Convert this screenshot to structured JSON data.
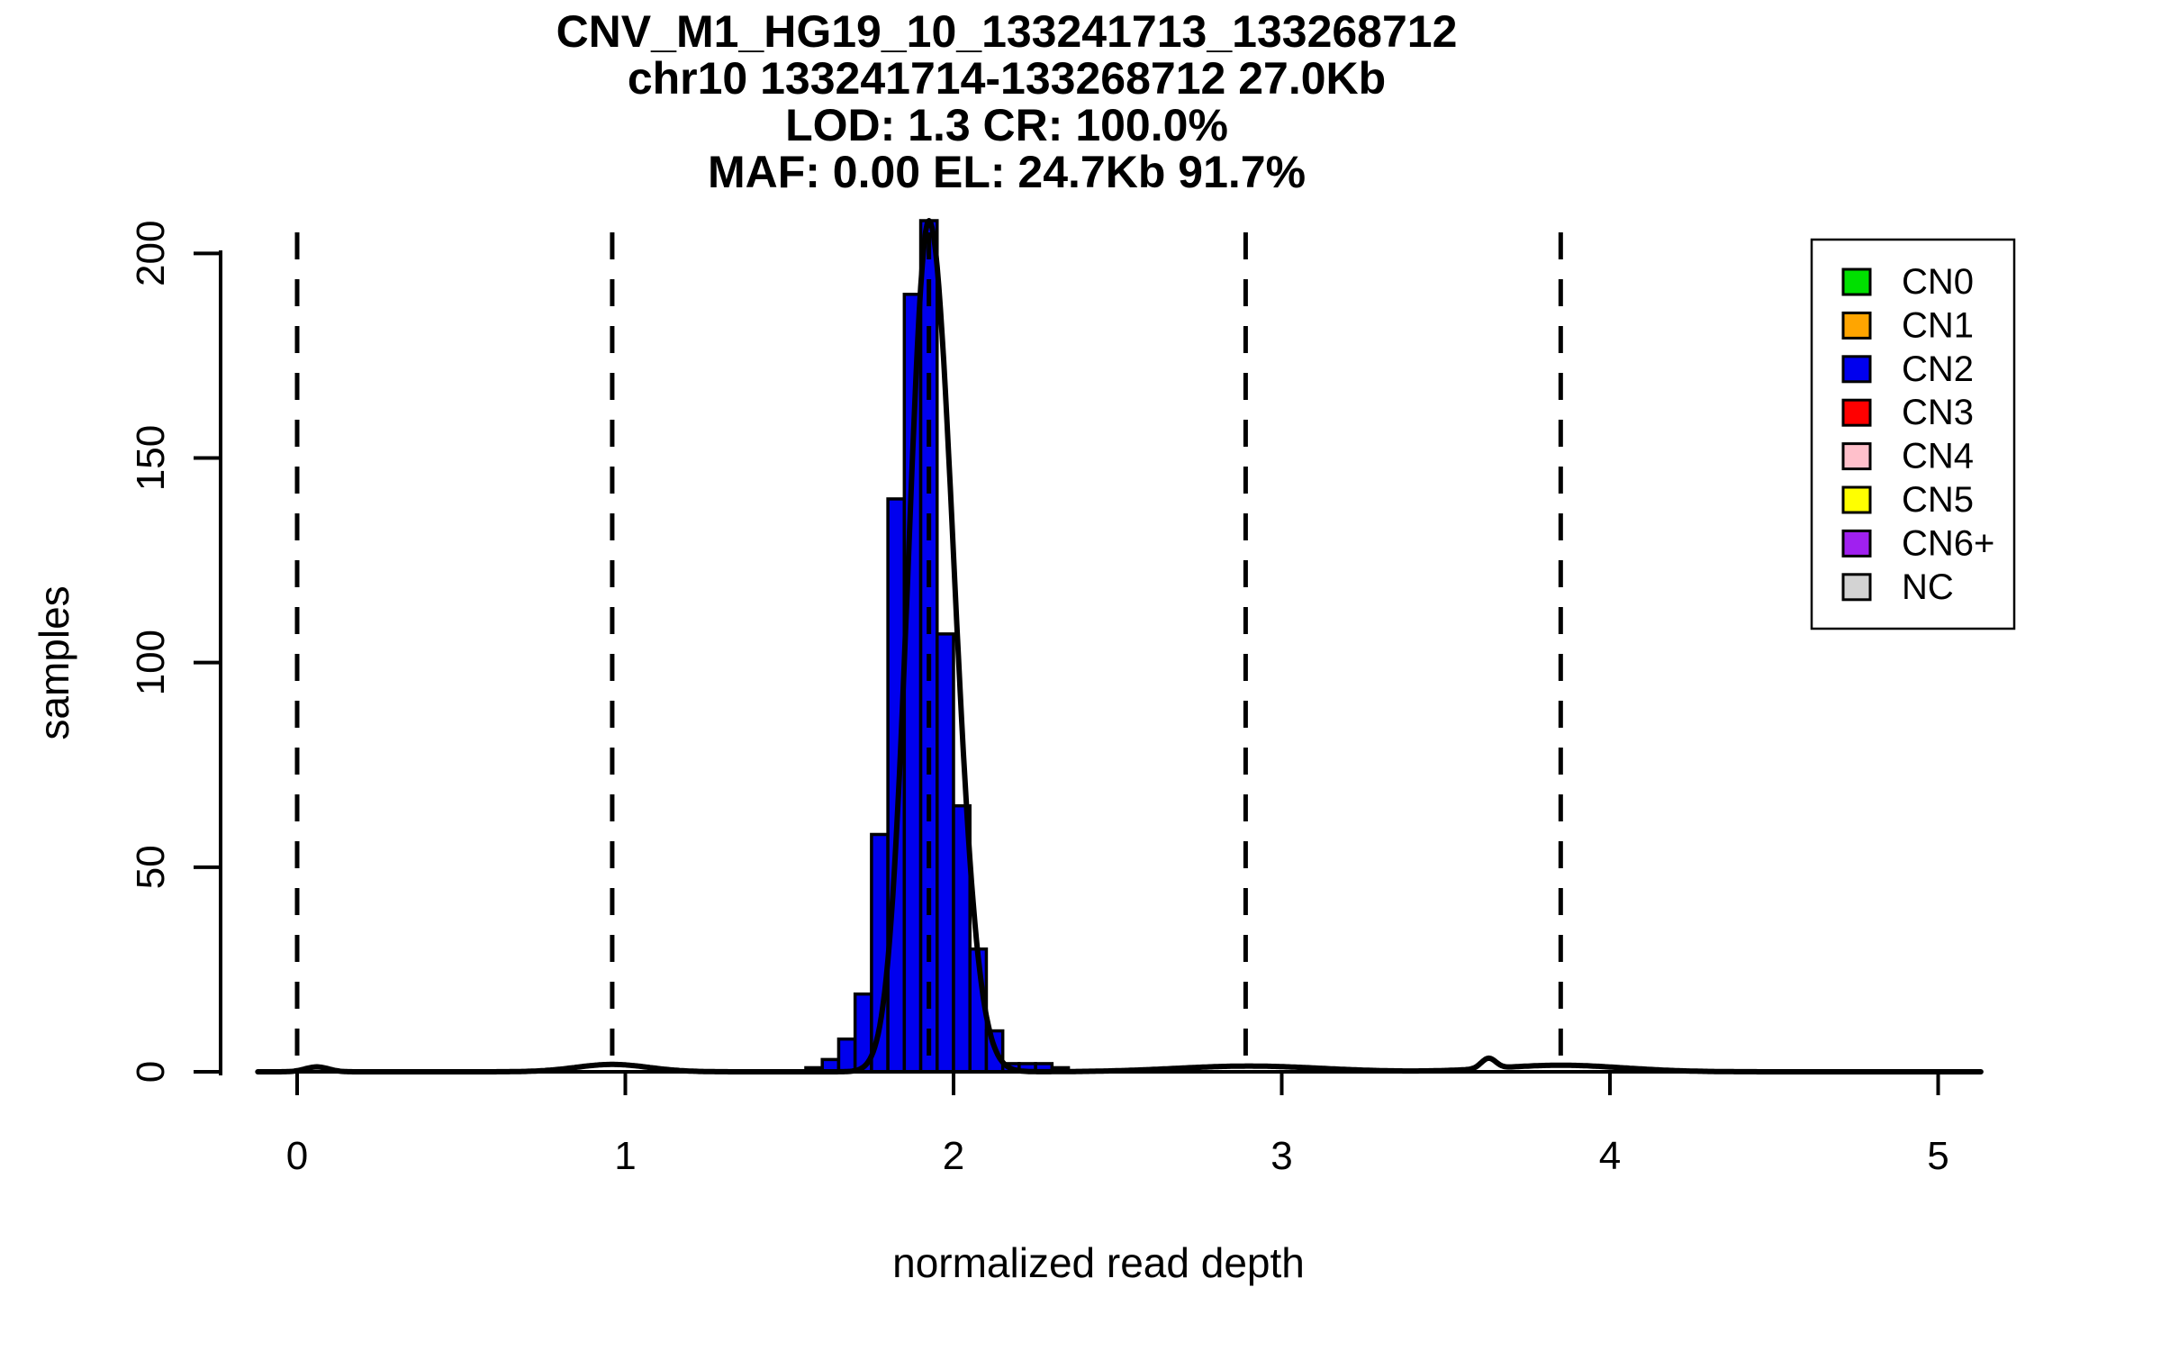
{
  "chart_data": {
    "type": "bar",
    "subtype": "histogram_with_density_overlay",
    "title_lines": [
      "CNV_M1_HG19_10_133241713_133268712",
      "chr10 133241714-133268712 27.0Kb",
      "LOD: 1.3 CR: 100.0%",
      "MAF: 0.00 EL: 24.7Kb 91.7%"
    ],
    "xlabel": "normalized read depth",
    "ylabel": "samples",
    "x_ticks": [
      0,
      1,
      2,
      3,
      4,
      5
    ],
    "y_ticks": [
      0,
      50,
      100,
      150,
      200
    ],
    "xlim": [
      -0.12,
      5.13
    ],
    "ylim": [
      0,
      216
    ],
    "grid": false,
    "bin_width": 0.05,
    "bars": [
      {
        "x": 1.55,
        "count": 1
      },
      {
        "x": 1.6,
        "count": 3
      },
      {
        "x": 1.65,
        "count": 8
      },
      {
        "x": 1.7,
        "count": 19
      },
      {
        "x": 1.75,
        "count": 58
      },
      {
        "x": 1.8,
        "count": 140
      },
      {
        "x": 1.85,
        "count": 190
      },
      {
        "x": 1.9,
        "count": 208
      },
      {
        "x": 1.95,
        "count": 107
      },
      {
        "x": 2.0,
        "count": 65
      },
      {
        "x": 2.05,
        "count": 30
      },
      {
        "x": 2.1,
        "count": 10
      },
      {
        "x": 2.15,
        "count": 2
      },
      {
        "x": 2.2,
        "count": 2
      },
      {
        "x": 2.25,
        "count": 2
      },
      {
        "x": 2.3,
        "count": 1
      }
    ],
    "dashed_lines_x": [
      0.0,
      0.96,
      1.925,
      2.89,
      3.85
    ],
    "density_curve": {
      "peak": 208,
      "mean": 1.925,
      "sd_left": 0.062,
      "sd_right": 0.075,
      "tail_bumps": [
        {
          "x": 0.06,
          "sd": 0.035,
          "h": 1.2
        },
        {
          "x": 0.96,
          "sd": 0.11,
          "h": 1.8
        },
        {
          "x": 2.9,
          "sd": 0.22,
          "h": 1.4
        },
        {
          "x": 3.63,
          "sd": 0.022,
          "h": 2.5
        },
        {
          "x": 3.85,
          "sd": 0.19,
          "h": 1.6
        }
      ]
    },
    "legend_position": "top-right",
    "legend": {
      "items": [
        {
          "label": "CN0",
          "color": "#00E000"
        },
        {
          "label": "CN1",
          "color": "#FFA500"
        },
        {
          "label": "CN2",
          "color": "#0000EE"
        },
        {
          "label": "CN3",
          "color": "#FF0000"
        },
        {
          "label": "CN4",
          "color": "#FFC0CB"
        },
        {
          "label": "CN5",
          "color": "#FFFF00"
        },
        {
          "label": "CN6+",
          "color": "#A020F0"
        },
        {
          "label": "NC",
          "color": "#D3D3D3"
        }
      ]
    },
    "colors": {
      "bar_fill": "#0000EE",
      "bar_stroke": "#000000",
      "curve": "#000000",
      "dashed_line": "#000000",
      "axis": "#000000"
    }
  }
}
